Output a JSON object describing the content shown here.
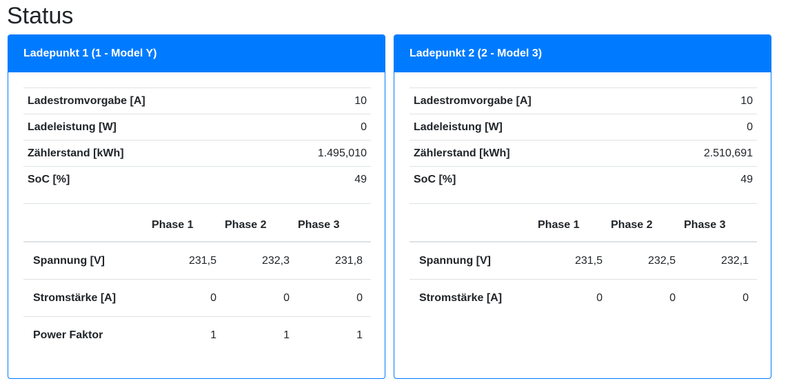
{
  "page": {
    "title": "Status"
  },
  "cards": [
    {
      "header": "Ladepunkt 1 (1 - Model Y)",
      "info": [
        {
          "label": "Ladestromvorgabe [A]",
          "value": "10"
        },
        {
          "label": "Ladeleistung [W]",
          "value": "0"
        },
        {
          "label": "Zählerstand [kWh]",
          "value": "1.495,010"
        },
        {
          "label": "SoC [%]",
          "value": "49"
        }
      ],
      "phase_headers": [
        "Phase 1",
        "Phase 2",
        "Phase 3"
      ],
      "phase_rows": [
        {
          "label": "Spannung [V]",
          "values": [
            "231,5",
            "232,3",
            "231,8"
          ]
        },
        {
          "label": "Stromstärke [A]",
          "values": [
            "0",
            "0",
            "0"
          ]
        },
        {
          "label": "Power Faktor",
          "values": [
            "1",
            "1",
            "1"
          ]
        }
      ]
    },
    {
      "header": "Ladepunkt 2 (2 - Model 3)",
      "info": [
        {
          "label": "Ladestromvorgabe [A]",
          "value": "10"
        },
        {
          "label": "Ladeleistung [W]",
          "value": "0"
        },
        {
          "label": "Zählerstand [kWh]",
          "value": "2.510,691"
        },
        {
          "label": "SoC [%]",
          "value": "49"
        }
      ],
      "phase_headers": [
        "Phase 1",
        "Phase 2",
        "Phase 3"
      ],
      "phase_rows": [
        {
          "label": "Spannung [V]",
          "values": [
            "231,5",
            "232,5",
            "232,1"
          ]
        },
        {
          "label": "Stromstärke [A]",
          "values": [
            "0",
            "0",
            "0"
          ]
        }
      ]
    }
  ],
  "colors": {
    "accent": "#007bff",
    "border": "#dee2e6",
    "text": "#212529"
  }
}
